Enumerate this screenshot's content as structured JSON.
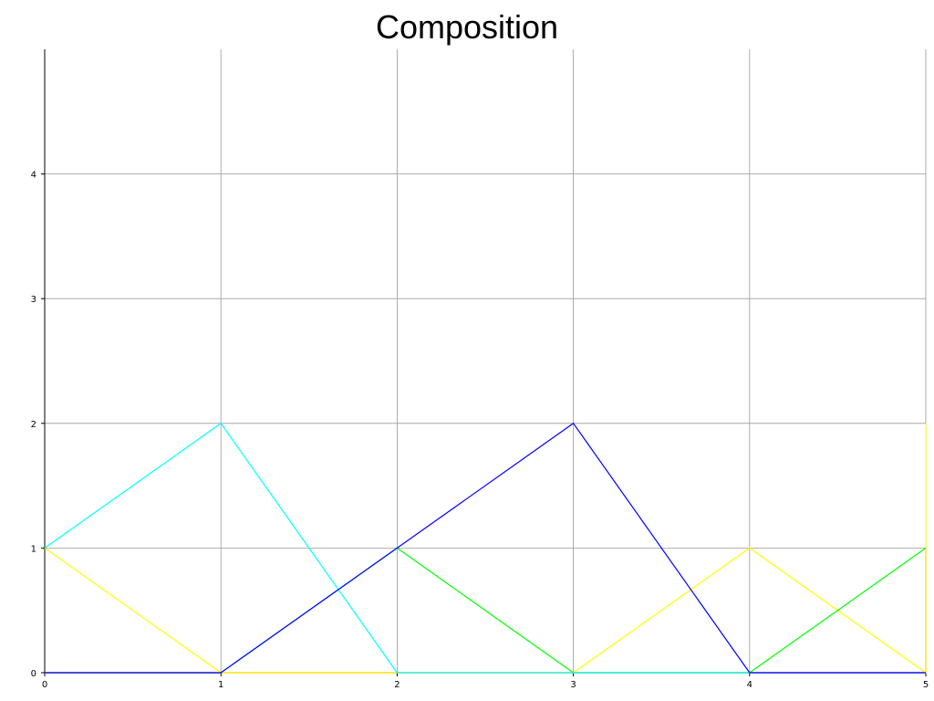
{
  "chart_data": {
    "type": "line",
    "title": "Composition",
    "xlabel": "",
    "ylabel": "",
    "xlim": [
      0,
      5
    ],
    "ylim": [
      0,
      5
    ],
    "grid": true,
    "x_ticks": [
      "0",
      "1",
      "2",
      "3",
      "4",
      "5"
    ],
    "y_ticks": [
      "0",
      "1",
      "2",
      "3",
      "4"
    ],
    "series": [
      {
        "color": "#ff0000",
        "x": [
          0,
          1,
          2,
          3,
          4,
          5,
          5
        ],
        "y": [
          0,
          0,
          0,
          0,
          0,
          0,
          1
        ]
      },
      {
        "color": "#ffff00",
        "x": [
          0,
          1,
          2,
          3,
          4,
          5,
          5
        ],
        "y": [
          1,
          0,
          0,
          0,
          1,
          0,
          2
        ]
      },
      {
        "color": "#00ff00",
        "x": [
          0,
          1,
          2,
          3,
          4,
          5
        ],
        "y": [
          0,
          0,
          1,
          0,
          0,
          1
        ]
      },
      {
        "color": "#00ffff",
        "x": [
          0,
          1,
          2,
          3,
          4,
          5
        ],
        "y": [
          1,
          2,
          0,
          0,
          0,
          0
        ]
      },
      {
        "color": "#0000ff",
        "x": [
          0,
          1,
          2,
          3,
          4,
          5
        ],
        "y": [
          0,
          0,
          1,
          2,
          0,
          0
        ]
      }
    ]
  }
}
